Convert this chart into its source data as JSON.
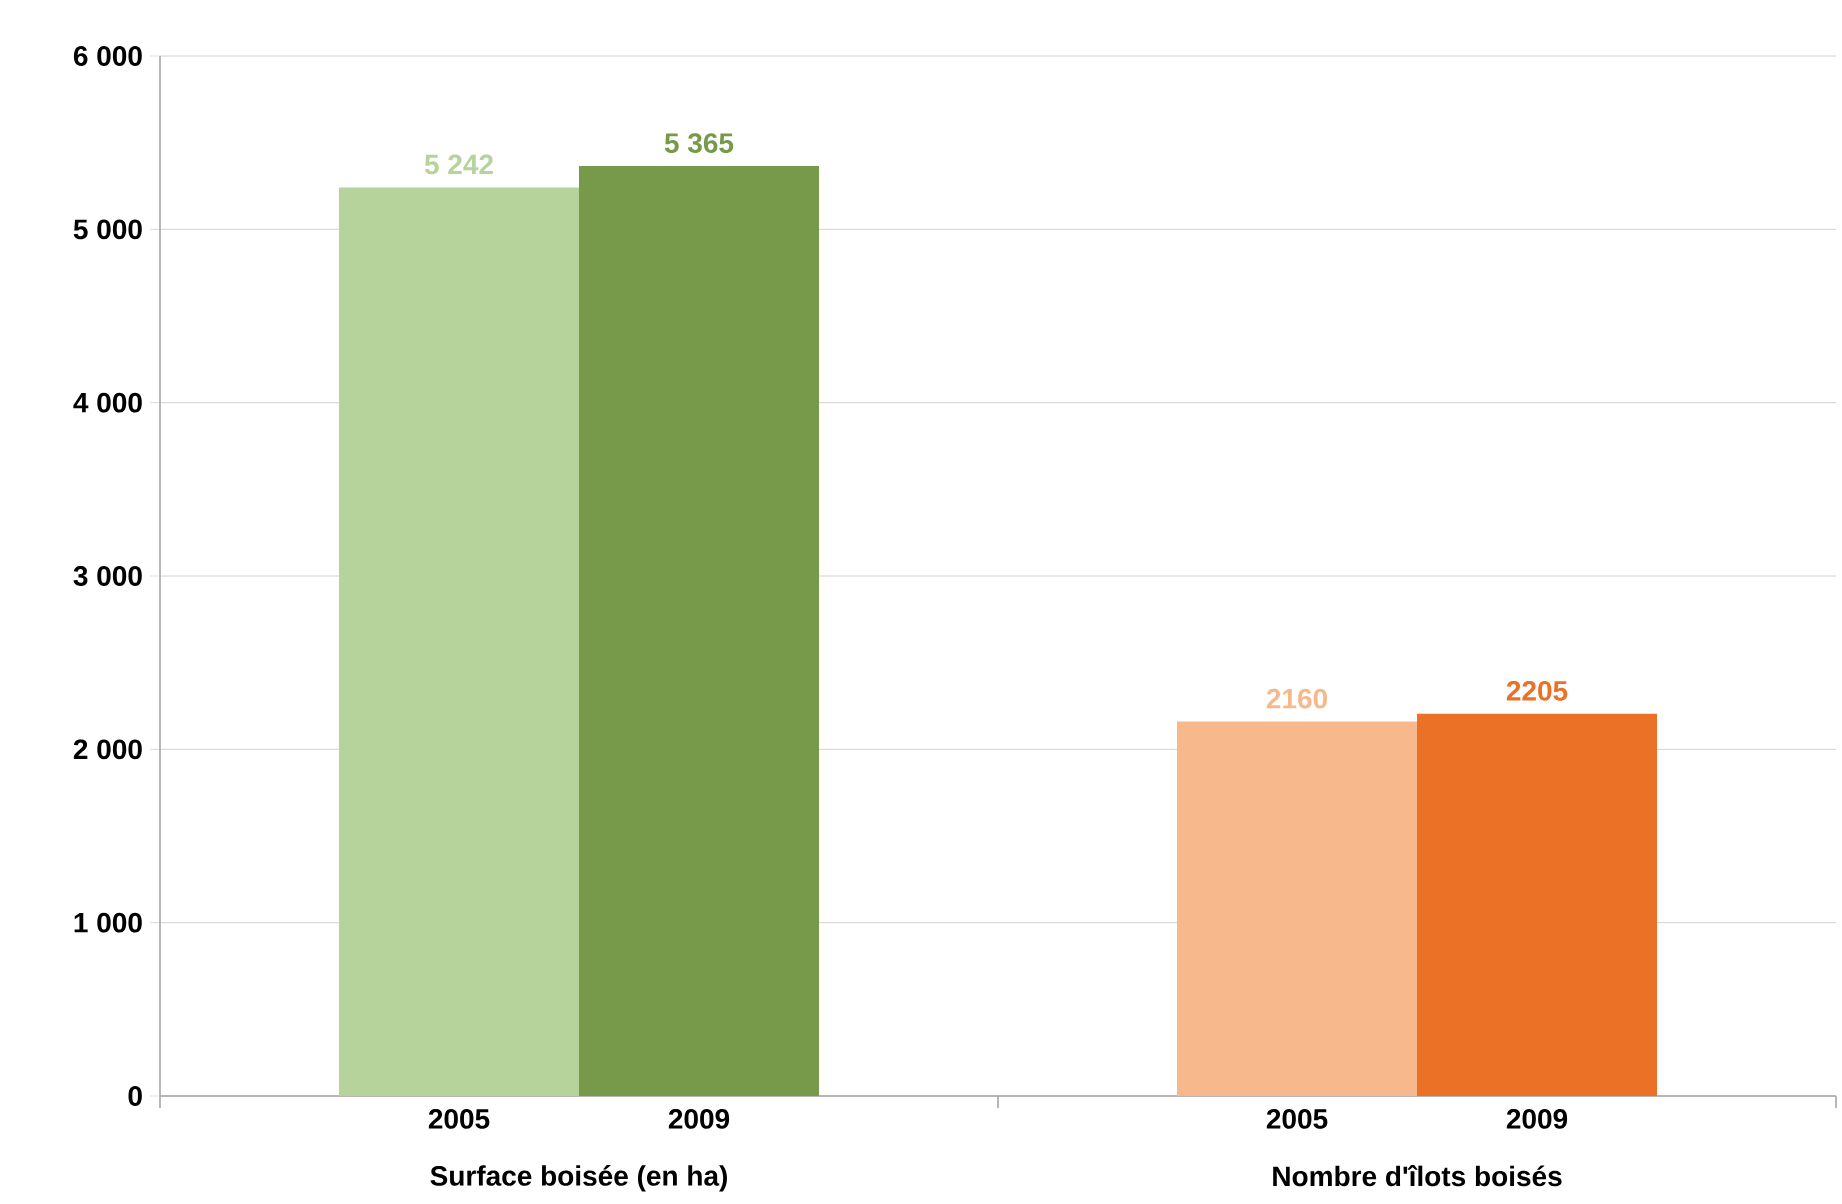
{
  "chart_data": {
    "type": "bar",
    "categories": [
      "Surface boisée (en ha)",
      "Nombre d'îlots boisés"
    ],
    "series": [
      {
        "name": "2005",
        "colors": [
          "#b5d39b",
          "#f7b98c"
        ],
        "values": [
          5242,
          2160
        ],
        "value_labels": [
          "5 242",
          "2160"
        ]
      },
      {
        "name": "2009",
        "colors": [
          "#76994a",
          "#ea7125"
        ],
        "values": [
          5365,
          2205
        ],
        "value_labels": [
          "5 365",
          "2205"
        ]
      }
    ],
    "ylim": [
      0,
      6000
    ],
    "yticks": [
      0,
      {
        "value": 1000,
        "label": "1 000"
      },
      {
        "value": 2000,
        "label": "2 000"
      },
      {
        "value": 3000,
        "label": "3 000"
      },
      {
        "value": 4000,
        "label": "4 000"
      },
      {
        "value": 5000,
        "label": "5 000"
      },
      {
        "value": 6000,
        "label": "6 000"
      }
    ],
    "grid": "y"
  }
}
